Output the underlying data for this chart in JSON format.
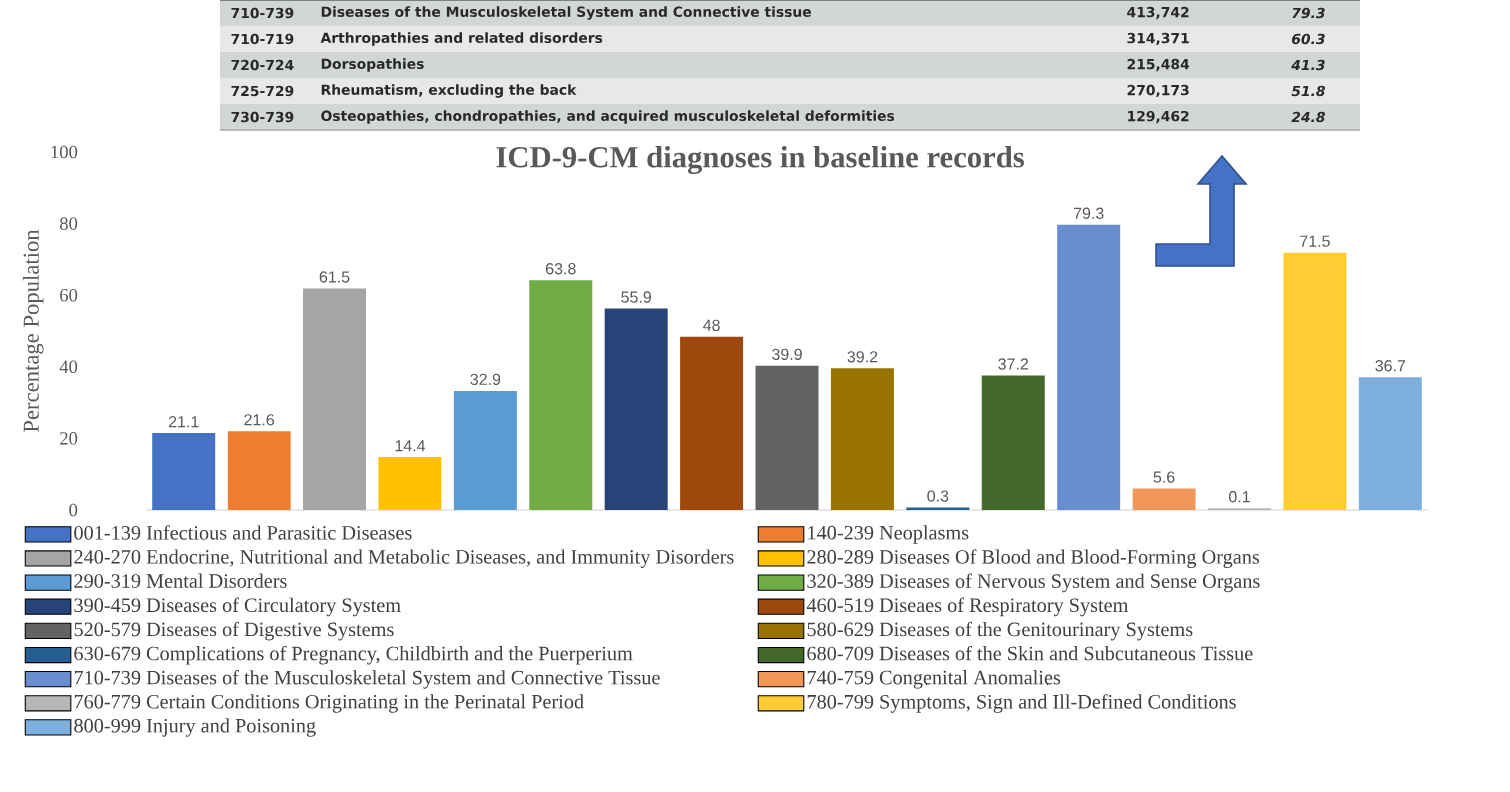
{
  "chart_data": {
    "type": "bar",
    "title": "ICD-9-CM diagnoses in baseline records",
    "ylabel": "Percentage Population",
    "categories": [
      null,
      null,
      null,
      null,
      null,
      null,
      null,
      null,
      null,
      null,
      null,
      null,
      null,
      null,
      null,
      null,
      null
    ],
    "ylim": [
      0,
      100
    ],
    "yticks": [
      0,
      20,
      40,
      60,
      80,
      100
    ],
    "tick_labels": "y",
    "data_labels": true,
    "legend": "bottom",
    "grid": false,
    "stacked": true,
    "series": [
      {
        "name": "001-139 Infectious and Parasitic Diseases",
        "color": "#4472c4",
        "values": [
          21.1,
          null,
          null,
          null,
          null,
          null,
          null,
          null,
          null,
          null,
          null,
          null,
          null,
          null,
          null,
          null,
          null
        ]
      },
      {
        "name": "140-239 Neoplasms",
        "color": "#ed7d31",
        "values": [
          null,
          21.6,
          null,
          null,
          null,
          null,
          null,
          null,
          null,
          null,
          null,
          null,
          null,
          null,
          null,
          null,
          null
        ]
      },
      {
        "name": "240-270 Endocrine, Nutritional and Metabolic Diseases, and Immunity Disorders",
        "color": "#a5a5a5",
        "values": [
          null,
          null,
          61.5,
          null,
          null,
          null,
          null,
          null,
          null,
          null,
          null,
          null,
          null,
          null,
          null,
          null,
          null
        ]
      },
      {
        "name": "280-289 Diseases Of Blood and Blood-Forming Organs",
        "color": "#ffc000",
        "values": [
          null,
          null,
          null,
          14.4,
          null,
          null,
          null,
          null,
          null,
          null,
          null,
          null,
          null,
          null,
          null,
          null,
          null
        ]
      },
      {
        "name": "290-319 Mental Disorders",
        "color": "#5b9bd5",
        "values": [
          null,
          null,
          null,
          null,
          32.9,
          null,
          null,
          null,
          null,
          null,
          null,
          null,
          null,
          null,
          null,
          null,
          null
        ]
      },
      {
        "name": "320-389 Diseases of Nervous System and Sense Organs",
        "color": "#70ad47",
        "values": [
          null,
          null,
          null,
          null,
          null,
          63.8,
          null,
          null,
          null,
          null,
          null,
          null,
          null,
          null,
          null,
          null,
          null
        ]
      },
      {
        "name": "390-459 Diseases of Circulatory System",
        "color": "#264478",
        "values": [
          null,
          null,
          null,
          null,
          null,
          null,
          55.9,
          null,
          null,
          null,
          null,
          null,
          null,
          null,
          null,
          null,
          null
        ]
      },
      {
        "name": "460-519 Diseaes of Respiratory System",
        "color": "#9e480e",
        "values": [
          null,
          null,
          null,
          null,
          null,
          null,
          null,
          48,
          null,
          null,
          null,
          null,
          null,
          null,
          null,
          null,
          null
        ]
      },
      {
        "name": "520-579 Diseases of Digestive Systems",
        "color": "#636363",
        "values": [
          null,
          null,
          null,
          null,
          null,
          null,
          null,
          null,
          39.9,
          null,
          null,
          null,
          null,
          null,
          null,
          null,
          null
        ]
      },
      {
        "name": "580-629 Diseases of the Genitourinary Systems",
        "color": "#997300",
        "values": [
          null,
          null,
          null,
          null,
          null,
          null,
          null,
          null,
          null,
          39.2,
          null,
          null,
          null,
          null,
          null,
          null,
          null
        ]
      },
      {
        "name": "630-679 Complications of Pregnancy, Childbirth and the Puerperium",
        "color": "#255e91",
        "values": [
          null,
          null,
          null,
          null,
          null,
          null,
          null,
          null,
          null,
          null,
          0.3,
          null,
          null,
          null,
          null,
          null,
          null
        ]
      },
      {
        "name": "680-709 Diseases of the Skin and Subcutaneous Tissue",
        "color": "#43682b",
        "values": [
          null,
          null,
          null,
          null,
          null,
          null,
          null,
          null,
          null,
          null,
          null,
          37.2,
          null,
          null,
          null,
          null,
          null
        ]
      },
      {
        "name": "710-739 Diseases of the Musculoskeletal System and Connective Tissue",
        "color": "#698ed0",
        "values": [
          null,
          null,
          null,
          null,
          null,
          null,
          null,
          null,
          null,
          null,
          null,
          null,
          79.3,
          null,
          null,
          null,
          null
        ]
      },
      {
        "name": "740-759 Congenital Anomalies",
        "color": "#f1975a",
        "values": [
          null,
          null,
          null,
          null,
          null,
          null,
          null,
          null,
          null,
          null,
          null,
          null,
          null,
          5.6,
          null,
          null,
          null
        ]
      },
      {
        "name": "760-779 Certain Conditions Originating in the Perinatal Period",
        "color": "#b7b7b7",
        "values": [
          null,
          null,
          null,
          null,
          null,
          null,
          null,
          null,
          null,
          null,
          null,
          null,
          null,
          null,
          0.1,
          null,
          null
        ]
      },
      {
        "name": "780-799 Symptoms, Sign and Ill-Defined Conditions",
        "color": "#ffcd33",
        "values": [
          null,
          null,
          null,
          null,
          null,
          null,
          null,
          null,
          null,
          null,
          null,
          null,
          null,
          null,
          null,
          71.5,
          null
        ]
      },
      {
        "name": "800-999 Injury and Poisoning",
        "color": "#7cafdd",
        "values": [
          null,
          null,
          null,
          null,
          null,
          null,
          null,
          null,
          null,
          null,
          null,
          null,
          null,
          null,
          null,
          null,
          36.7
        ]
      }
    ],
    "annotations": [
      "710-739",
      "Diseases of the Musculoskeletal System and Connective tissue",
      "413,742",
      "79.3",
      "710-719",
      "Arthropathies and related disorders",
      "314,371",
      "60.3",
      "720-724",
      "Dorsopathies",
      "215,484",
      "41.3",
      "725-729",
      "Rheumatism, excluding the back",
      "270,173",
      "51.8",
      "730-739",
      "Osteopathies, chondropathies, and acquired musculoskeletal deformities",
      "129,462",
      "24.8"
    ]
  }
}
